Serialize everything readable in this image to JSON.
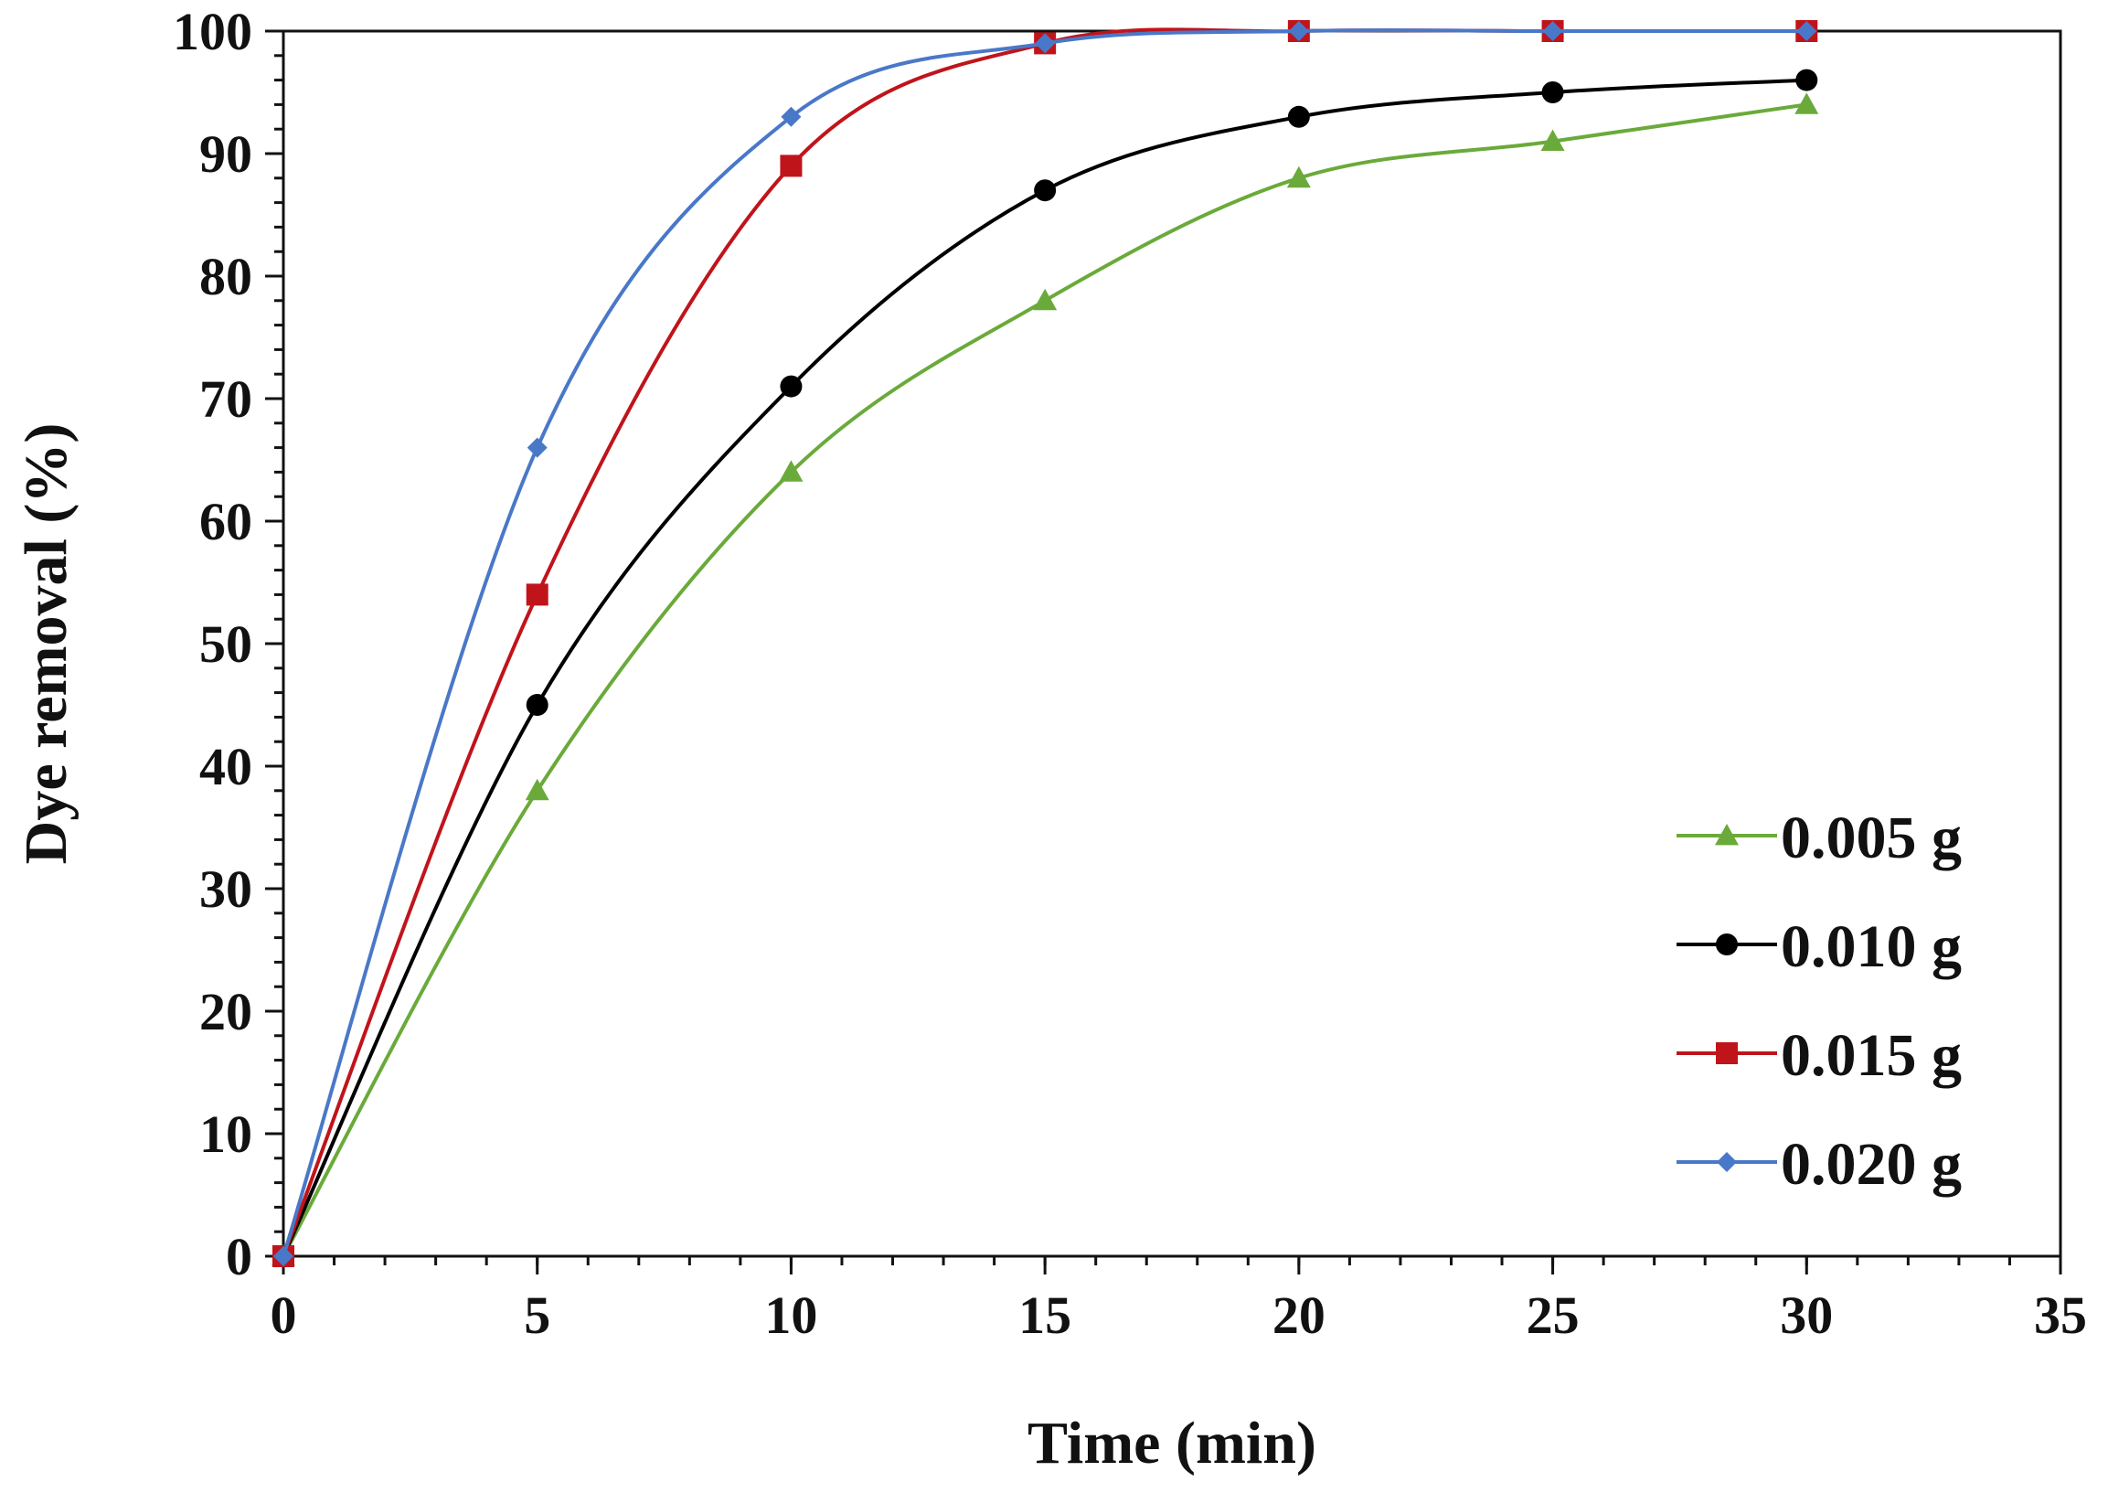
{
  "chart_data": {
    "type": "line",
    "title": "",
    "xlabel": "Time (min)",
    "ylabel": "Dye removal (%)",
    "xlim": [
      0,
      35
    ],
    "ylim": [
      0,
      100
    ],
    "x_ticks": [
      0,
      5,
      10,
      15,
      20,
      25,
      30,
      35
    ],
    "y_ticks": [
      0,
      10,
      20,
      30,
      40,
      50,
      60,
      70,
      80,
      90,
      100
    ],
    "x_minor_step": 1,
    "y_minor_step": 2,
    "grid": false,
    "legend_position": "bottom-right",
    "x": [
      0,
      5,
      10,
      15,
      20,
      25,
      30
    ],
    "series": [
      {
        "name": "0.005 g",
        "color": "#6aaa3a",
        "marker": "triangle",
        "values": [
          0,
          38,
          64,
          78,
          88,
          91,
          94
        ]
      },
      {
        "name": "0.010 g",
        "color": "#000000",
        "marker": "circle",
        "values": [
          0,
          45,
          71,
          87,
          93,
          95,
          96
        ]
      },
      {
        "name": "0.015 g",
        "color": "#c0141b",
        "marker": "square",
        "values": [
          0,
          54,
          89,
          99,
          100,
          100,
          100
        ]
      },
      {
        "name": "0.020 g",
        "color": "#4a78c8",
        "marker": "diamond",
        "values": [
          0,
          66,
          93,
          99,
          100,
          100,
          100
        ]
      }
    ]
  }
}
